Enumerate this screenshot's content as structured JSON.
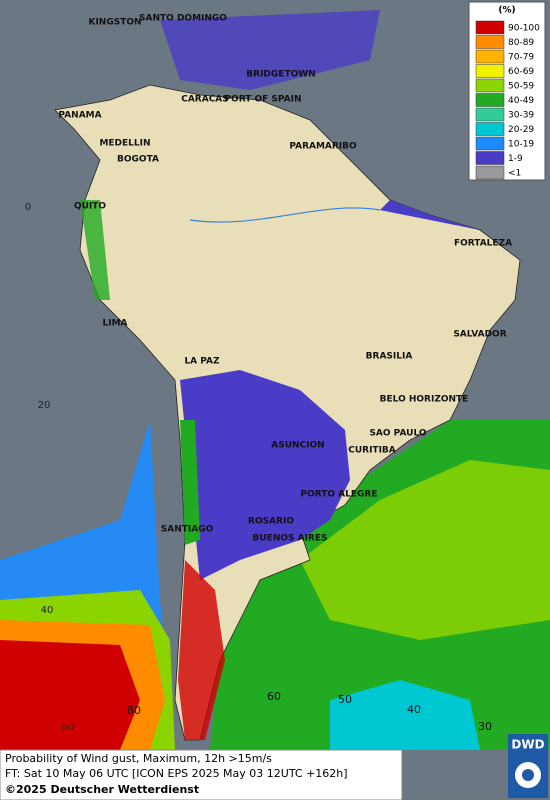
{
  "legend": {
    "unit": "(%)",
    "items": [
      {
        "label": "90-100",
        "color": "#d00000"
      },
      {
        "label": "80-89",
        "color": "#ff8c00"
      },
      {
        "label": "70-79",
        "color": "#ffb300"
      },
      {
        "label": "60-69",
        "color": "#f2f200"
      },
      {
        "label": "50-59",
        "color": "#8cd400"
      },
      {
        "label": "40-49",
        "color": "#22aa22"
      },
      {
        "label": "30-39",
        "color": "#33cc99"
      },
      {
        "label": "20-29",
        "color": "#00c8d2"
      },
      {
        "label": "10-19",
        "color": "#1e8cff"
      },
      {
        "label": "1-9",
        "color": "#4b3cc8"
      },
      {
        "label": "<1",
        "color": "#9a9a9a"
      }
    ]
  },
  "cities": [
    "KINGSTON",
    "SANTO DOMINGO",
    "BRIDGETOWN",
    "CARACAS",
    "PORT OF SPAIN",
    "PANAMA",
    "MEDELLIN",
    "BOGOTA",
    "PARAMARIBO",
    "QUITO",
    "FORTALEZA",
    "LIMA",
    "SALVADOR",
    "LA PAZ",
    "BRASILIA",
    "BELO HORIZONTE",
    "SAO PAULO",
    "ASUNCION",
    "CURITIBA",
    "PORTO ALEGRE",
    "ROSARIO",
    "BUENOS AIRES",
    "SANTIAGO"
  ],
  "grid_labels": [
    "0",
    "20",
    "40",
    "60"
  ],
  "contour_labels": [
    "80",
    "60",
    "50",
    "40",
    "30"
  ],
  "footer": {
    "line1": "Probability of Wind gust, Maximum, 12h >15m/s",
    "line2": "FT: Sat 10 May 06 UTC [ICON EPS 2025 May 03 12UTC +162h]",
    "copyright": "©2025 Deutscher Wetterdienst"
  },
  "logo": "DWD"
}
